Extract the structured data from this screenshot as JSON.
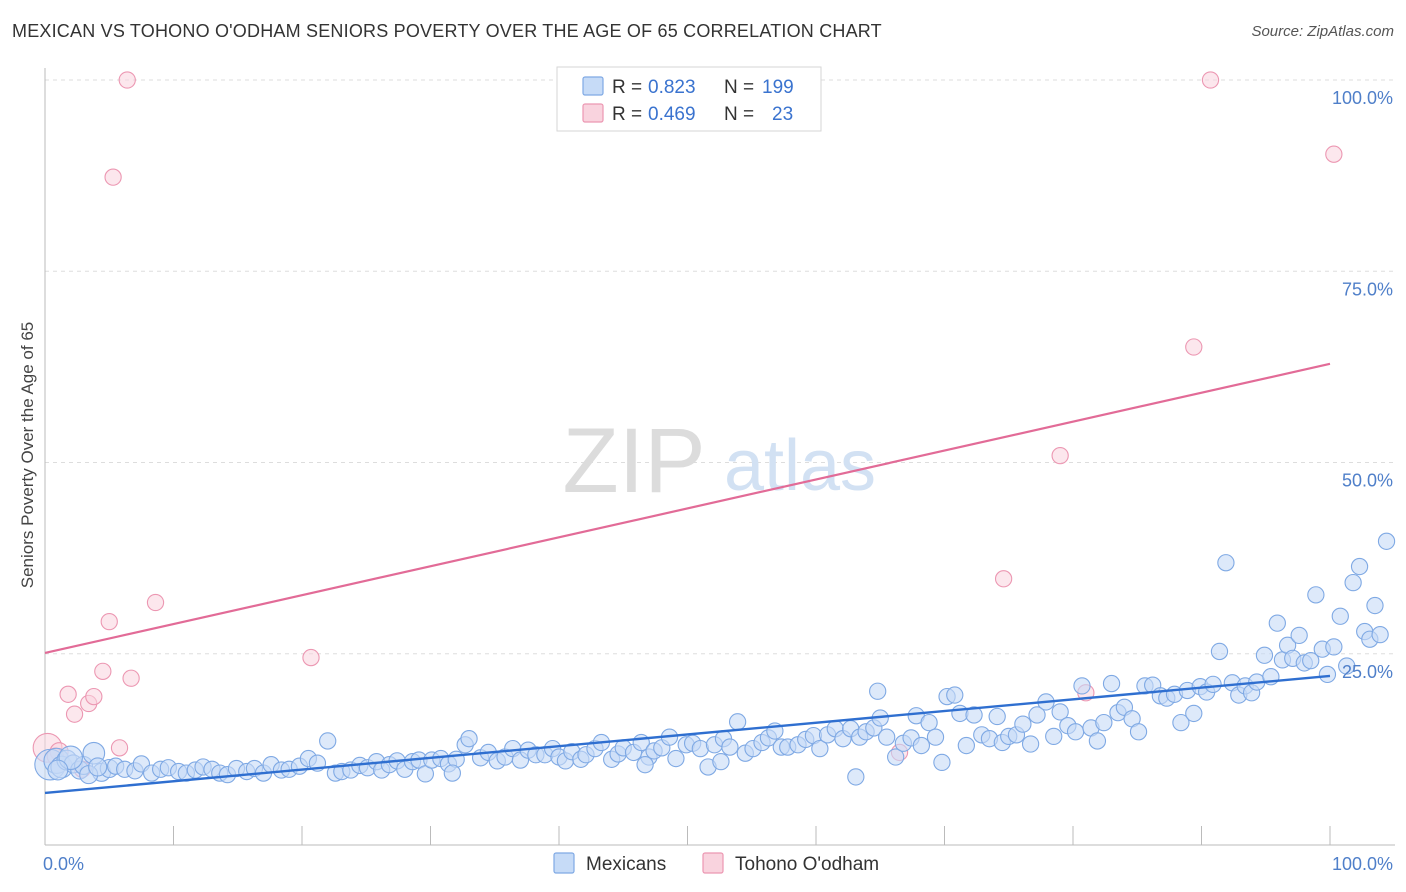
{
  "title": "MEXICAN VS TOHONO O'ODHAM SENIORS POVERTY OVER THE AGE OF 65 CORRELATION CHART",
  "source": "Source: ZipAtlas.com",
  "watermark": {
    "zip": "ZIP",
    "atlas": "atlas"
  },
  "colors": {
    "blue_fill": "#c6dbf7",
    "blue_stroke": "#7fa9e4",
    "blue_line": "#2f6fd0",
    "pink_fill": "#f9d3de",
    "pink_stroke": "#ec97b2",
    "pink_line": "#e26b97",
    "tick_label": "#4f7fc9",
    "grid": "#dddddd"
  },
  "chart_data": {
    "type": "scatter",
    "title": "MEXICAN VS TOHONO O'ODHAM SENIORS POVERTY OVER THE AGE OF 65 CORRELATION CHART",
    "xlabel": "",
    "ylabel": "Seniors Poverty Over the Age of 65",
    "xlim": [
      0,
      100
    ],
    "ylim": [
      0,
      100
    ],
    "x_tick_labels": {
      "left": "0.0%",
      "right": "100.0%"
    },
    "y_ticks": [
      {
        "value": 25,
        "label": "25.0%"
      },
      {
        "value": 50,
        "label": "50.0%"
      },
      {
        "value": 75,
        "label": "75.0%"
      },
      {
        "value": 100,
        "label": "100.0%"
      }
    ],
    "legend_stats": [
      {
        "name": "Mexicans",
        "r_label": "R =",
        "r": "0.823",
        "n_label": "N =",
        "n": "199"
      },
      {
        "name": "Tohono O'odham",
        "r_label": "R =",
        "r": "0.469",
        "n_label": "N =",
        "n": "23"
      }
    ],
    "series": [
      {
        "name": "Mexicans",
        "color": "blue",
        "trend": {
          "x": [
            0,
            100
          ],
          "y": [
            6.8,
            22.1
          ]
        },
        "points": [
          [
            0.4,
            10.5,
            1.7
          ],
          [
            0.9,
            11.0,
            1.4
          ],
          [
            1.3,
            10.2,
            1.2
          ],
          [
            1.7,
            11.1,
            1.1
          ],
          [
            2.2,
            10.6,
            1.0
          ],
          [
            2.7,
            9.8,
            1.0
          ],
          [
            3.0,
            10.4,
            1.0
          ],
          [
            3.8,
            12.0,
            1.2
          ],
          [
            4.4,
            9.5,
            1.0
          ],
          [
            5.0,
            10.0,
            1.0
          ],
          [
            5.5,
            10.3,
            0.9
          ],
          [
            6.2,
            9.9,
            0.9
          ],
          [
            7.0,
            9.7,
            0.9
          ],
          [
            7.5,
            10.6,
            0.9
          ],
          [
            8.3,
            9.4,
            0.9
          ],
          [
            9.0,
            9.9,
            0.9
          ],
          [
            9.6,
            10.1,
            0.9
          ],
          [
            10.4,
            9.6,
            0.9
          ],
          [
            11.0,
            9.4,
            0.9
          ],
          [
            11.7,
            9.8,
            0.9
          ],
          [
            12.3,
            10.2,
            0.9
          ],
          [
            13.0,
            9.9,
            0.9
          ],
          [
            13.6,
            9.4,
            0.9
          ],
          [
            14.2,
            9.2,
            0.9
          ],
          [
            14.9,
            10.0,
            0.9
          ],
          [
            15.7,
            9.6,
            0.9
          ],
          [
            16.3,
            10.0,
            0.9
          ],
          [
            17.0,
            9.4,
            0.9
          ],
          [
            17.6,
            10.5,
            0.9
          ],
          [
            18.4,
            9.8,
            0.9
          ],
          [
            19.0,
            9.9,
            0.9
          ],
          [
            19.8,
            10.3,
            0.9
          ],
          [
            20.5,
            11.3,
            0.9
          ],
          [
            21.2,
            10.7,
            0.9
          ],
          [
            22.0,
            13.6,
            0.9
          ],
          [
            22.6,
            9.4,
            0.9
          ],
          [
            23.1,
            9.6,
            0.9
          ],
          [
            23.8,
            9.8,
            0.9
          ],
          [
            24.5,
            10.4,
            0.9
          ],
          [
            25.1,
            10.1,
            0.9
          ],
          [
            25.8,
            10.9,
            0.9
          ],
          [
            26.2,
            9.8,
            0.9
          ],
          [
            26.8,
            10.5,
            0.9
          ],
          [
            27.4,
            11.0,
            0.9
          ],
          [
            28.0,
            9.9,
            0.9
          ],
          [
            28.6,
            10.9,
            0.9
          ],
          [
            29.1,
            11.1,
            0.9
          ],
          [
            29.6,
            9.3,
            0.9
          ],
          [
            30.1,
            11.1,
            0.9
          ],
          [
            30.8,
            11.3,
            0.9
          ],
          [
            31.4,
            10.6,
            0.9
          ],
          [
            32.0,
            11.2,
            0.9
          ],
          [
            32.7,
            13.1,
            0.9
          ],
          [
            33.0,
            13.9,
            0.9
          ],
          [
            33.9,
            11.4,
            0.9
          ],
          [
            34.5,
            12.1,
            0.9
          ],
          [
            35.2,
            11.0,
            0.9
          ],
          [
            35.8,
            11.5,
            0.9
          ],
          [
            36.4,
            12.6,
            0.9
          ],
          [
            37.0,
            11.1,
            0.9
          ],
          [
            37.6,
            12.4,
            0.9
          ],
          [
            38.2,
            11.8,
            0.9
          ],
          [
            38.9,
            11.8,
            0.9
          ],
          [
            39.5,
            12.6,
            0.9
          ],
          [
            40.0,
            11.5,
            0.9
          ],
          [
            40.5,
            11.0,
            0.9
          ],
          [
            41.0,
            12.2,
            0.9
          ],
          [
            41.7,
            11.2,
            0.9
          ],
          [
            42.1,
            11.8,
            0.9
          ],
          [
            42.8,
            12.6,
            0.9
          ],
          [
            43.3,
            13.4,
            0.9
          ],
          [
            44.1,
            11.2,
            0.9
          ],
          [
            44.6,
            11.9,
            0.9
          ],
          [
            45.0,
            12.7,
            0.9
          ],
          [
            45.8,
            12.1,
            0.9
          ],
          [
            46.4,
            13.4,
            0.9
          ],
          [
            47.0,
            11.5,
            0.9
          ],
          [
            47.4,
            12.3,
            0.9
          ],
          [
            48.0,
            12.7,
            0.9
          ],
          [
            48.6,
            14.1,
            0.9
          ],
          [
            49.1,
            11.3,
            0.9
          ],
          [
            49.9,
            13.1,
            0.9
          ],
          [
            50.4,
            13.3,
            0.9
          ],
          [
            51.0,
            12.6,
            0.9
          ],
          [
            51.6,
            10.2,
            0.9
          ],
          [
            52.1,
            13.1,
            0.9
          ],
          [
            52.8,
            13.9,
            0.9
          ],
          [
            53.3,
            12.8,
            0.9
          ],
          [
            53.9,
            16.1,
            0.9
          ],
          [
            54.5,
            12.0,
            0.9
          ],
          [
            55.1,
            12.6,
            0.9
          ],
          [
            55.8,
            13.4,
            0.9
          ],
          [
            56.3,
            14.0,
            0.9
          ],
          [
            56.8,
            14.9,
            0.9
          ],
          [
            57.3,
            12.8,
            0.9
          ],
          [
            57.8,
            12.8,
            0.9
          ],
          [
            58.6,
            13.1,
            0.9
          ],
          [
            59.2,
            13.8,
            0.9
          ],
          [
            59.8,
            14.3,
            0.9
          ],
          [
            60.3,
            12.6,
            0.9
          ],
          [
            60.9,
            14.4,
            0.9
          ],
          [
            61.5,
            15.2,
            0.9
          ],
          [
            62.1,
            13.9,
            0.9
          ],
          [
            62.7,
            15.2,
            0.9
          ],
          [
            63.1,
            8.9,
            0.9
          ],
          [
            63.4,
            14.1,
            0.9
          ],
          [
            63.9,
            14.8,
            0.9
          ],
          [
            64.5,
            15.3,
            0.9
          ],
          [
            65.0,
            16.6,
            0.9
          ],
          [
            65.5,
            14.1,
            0.9
          ],
          [
            66.2,
            11.5,
            0.9
          ],
          [
            66.8,
            13.3,
            0.9
          ],
          [
            67.4,
            14.0,
            0.9
          ],
          [
            67.8,
            16.9,
            0.9
          ],
          [
            68.2,
            13.0,
            0.9
          ],
          [
            68.8,
            16.0,
            0.9
          ],
          [
            69.3,
            14.1,
            0.9
          ],
          [
            69.8,
            10.8,
            0.9
          ],
          [
            70.2,
            19.4,
            0.9
          ],
          [
            70.8,
            19.6,
            0.9
          ],
          [
            71.2,
            17.2,
            0.9
          ],
          [
            71.7,
            13.0,
            0.9
          ],
          [
            72.3,
            17.0,
            0.9
          ],
          [
            72.9,
            14.4,
            0.9
          ],
          [
            73.5,
            13.9,
            0.9
          ],
          [
            74.1,
            16.8,
            0.9
          ],
          [
            74.5,
            13.4,
            0.9
          ],
          [
            75.0,
            14.2,
            0.9
          ],
          [
            75.6,
            14.4,
            0.9
          ],
          [
            76.1,
            15.8,
            0.9
          ],
          [
            76.7,
            13.2,
            0.9
          ],
          [
            77.2,
            17.0,
            0.9
          ],
          [
            77.9,
            18.7,
            0.9
          ],
          [
            78.5,
            14.2,
            0.9
          ],
          [
            79.0,
            17.4,
            0.9
          ],
          [
            79.6,
            15.6,
            0.9
          ],
          [
            80.2,
            14.8,
            0.9
          ],
          [
            80.7,
            20.8,
            0.9
          ],
          [
            81.4,
            15.3,
            0.9
          ],
          [
            81.9,
            13.6,
            0.9
          ],
          [
            82.4,
            16.0,
            0.9
          ],
          [
            83.0,
            21.1,
            0.9
          ],
          [
            83.5,
            17.3,
            0.9
          ],
          [
            84.0,
            18.0,
            0.9
          ],
          [
            84.6,
            16.5,
            0.9
          ],
          [
            85.1,
            14.8,
            0.9
          ],
          [
            85.6,
            20.8,
            0.9
          ],
          [
            86.2,
            20.9,
            0.9
          ],
          [
            86.8,
            19.5,
            0.9
          ],
          [
            87.3,
            19.2,
            0.9
          ],
          [
            87.9,
            19.7,
            0.9
          ],
          [
            88.4,
            16.0,
            0.9
          ],
          [
            88.9,
            20.2,
            0.9
          ],
          [
            89.4,
            17.2,
            0.9
          ],
          [
            89.9,
            20.7,
            0.9
          ],
          [
            90.4,
            20.0,
            0.9
          ],
          [
            90.9,
            21.0,
            0.9
          ],
          [
            91.4,
            25.3,
            0.9
          ],
          [
            91.9,
            36.9,
            0.9
          ],
          [
            92.4,
            21.2,
            0.9
          ],
          [
            92.9,
            19.6,
            0.9
          ],
          [
            93.4,
            20.8,
            0.9
          ],
          [
            93.9,
            19.9,
            0.9
          ],
          [
            94.3,
            21.3,
            0.9
          ],
          [
            94.9,
            24.8,
            0.9
          ],
          [
            95.4,
            22.0,
            0.9
          ],
          [
            95.9,
            29.0,
            0.9
          ],
          [
            96.3,
            24.2,
            0.9
          ],
          [
            96.7,
            26.1,
            0.9
          ],
          [
            97.1,
            24.4,
            0.9
          ],
          [
            97.6,
            27.4,
            0.9
          ],
          [
            98.0,
            23.8,
            0.9
          ],
          [
            98.5,
            24.1,
            0.9
          ],
          [
            98.9,
            32.7,
            0.9
          ],
          [
            99.4,
            25.6,
            0.9
          ],
          [
            99.8,
            22.3,
            0.9
          ],
          [
            100.3,
            25.9,
            0.9
          ],
          [
            100.8,
            29.9,
            0.9
          ],
          [
            101.3,
            23.4,
            0.9
          ],
          [
            101.8,
            34.3,
            0.9
          ],
          [
            102.3,
            36.4,
            0.9
          ],
          [
            102.7,
            27.9,
            0.9
          ],
          [
            103.1,
            26.9,
            0.9
          ],
          [
            103.5,
            31.3,
            0.9
          ],
          [
            103.9,
            27.5,
            0.9
          ],
          [
            104.4,
            39.7,
            0.9
          ],
          [
            64.8,
            20.1,
            0.9
          ],
          [
            52.6,
            10.9,
            0.9
          ],
          [
            46.7,
            10.5,
            0.9
          ],
          [
            31.7,
            9.4,
            0.9
          ],
          [
            2.0,
            11.4,
            1.3
          ],
          [
            1.0,
            9.8,
            1.1
          ],
          [
            3.4,
            9.2,
            1.0
          ],
          [
            4.1,
            10.2,
            1.0
          ]
        ]
      },
      {
        "name": "Tohono O'odham",
        "color": "pink",
        "trend": {
          "x": [
            0,
            100
          ],
          "y": [
            25.1,
            62.9
          ]
        },
        "points": [
          [
            0.2,
            12.7,
            1.6
          ],
          [
            1.1,
            12.2,
            1.0
          ],
          [
            1.8,
            19.7,
            0.9
          ],
          [
            2.3,
            17.1,
            0.9
          ],
          [
            2.9,
            9.9,
            0.9
          ],
          [
            3.4,
            18.5,
            0.9
          ],
          [
            3.8,
            19.4,
            0.9
          ],
          [
            4.5,
            22.7,
            0.9
          ],
          [
            5.0,
            29.2,
            0.9
          ],
          [
            5.3,
            87.3,
            0.9
          ],
          [
            5.8,
            12.7,
            0.9
          ],
          [
            6.4,
            100.0,
            0.9
          ],
          [
            6.7,
            21.8,
            0.9
          ],
          [
            8.6,
            31.7,
            0.9
          ],
          [
            20.7,
            24.5,
            0.9
          ],
          [
            66.5,
            12.1,
            0.9
          ],
          [
            74.6,
            34.8,
            0.9
          ],
          [
            79.0,
            50.9,
            0.9
          ],
          [
            81.0,
            19.9,
            0.9
          ],
          [
            89.4,
            65.1,
            0.9
          ],
          [
            90.7,
            100.0,
            0.9
          ],
          [
            100.3,
            90.3,
            0.9
          ],
          [
            0.8,
            11.6,
            0.9
          ]
        ]
      }
    ]
  }
}
